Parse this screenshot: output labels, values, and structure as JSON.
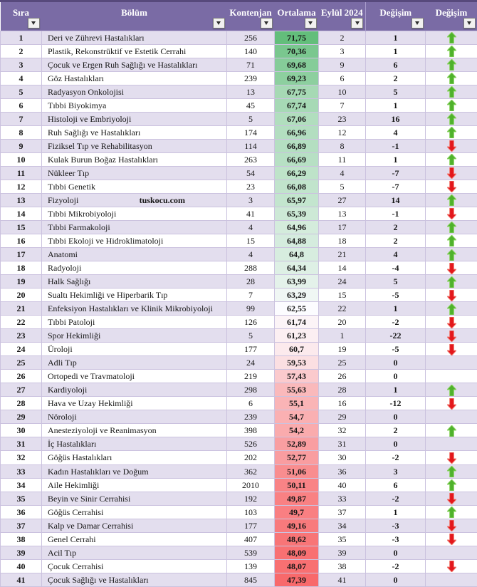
{
  "table": {
    "columns": [
      {
        "label": "Sıra"
      },
      {
        "label": "Bölüm"
      },
      {
        "label": "Kontenjan"
      },
      {
        "label": "Ortalama"
      },
      {
        "label": "Eylül 2024"
      },
      {
        "label": "Değişim"
      },
      {
        "label": "Değişim"
      }
    ],
    "watermark": "tuskocu.com",
    "rows": [
      {
        "sira": "1",
        "bolum": "Deri ve Zührevi Hastalıkları",
        "kontenjan": "256",
        "ortalama": "71,75",
        "eylul": "2",
        "degisim": "1",
        "arrow": "up"
      },
      {
        "sira": "2",
        "bolum": "Plastik, Rekonstrüktif ve Estetik Cerrahi",
        "kontenjan": "140",
        "ortalama": "70,36",
        "eylul": "3",
        "degisim": "1",
        "arrow": "up"
      },
      {
        "sira": "3",
        "bolum": "Çocuk ve Ergen Ruh Sağlığı ve Hastalıkları",
        "kontenjan": "71",
        "ortalama": "69,68",
        "eylul": "9",
        "degisim": "6",
        "arrow": "up"
      },
      {
        "sira": "4",
        "bolum": "Göz Hastalıkları",
        "kontenjan": "239",
        "ortalama": "69,23",
        "eylul": "6",
        "degisim": "2",
        "arrow": "up"
      },
      {
        "sira": "5",
        "bolum": "Radyasyon Onkolojisi",
        "kontenjan": "13",
        "ortalama": "67,75",
        "eylul": "10",
        "degisim": "5",
        "arrow": "up"
      },
      {
        "sira": "6",
        "bolum": "Tıbbi Biyokimya",
        "kontenjan": "45",
        "ortalama": "67,74",
        "eylul": "7",
        "degisim": "1",
        "arrow": "up"
      },
      {
        "sira": "7",
        "bolum": "Histoloji ve Embriyoloji",
        "kontenjan": "5",
        "ortalama": "67,06",
        "eylul": "23",
        "degisim": "16",
        "arrow": "up"
      },
      {
        "sira": "8",
        "bolum": "Ruh Sağlığı ve Hastalıkları",
        "kontenjan": "174",
        "ortalama": "66,96",
        "eylul": "12",
        "degisim": "4",
        "arrow": "up"
      },
      {
        "sira": "9",
        "bolum": "Fiziksel Tıp ve Rehabilitasyon",
        "kontenjan": "114",
        "ortalama": "66,89",
        "eylul": "8",
        "degisim": "-1",
        "arrow": "down"
      },
      {
        "sira": "10",
        "bolum": "Kulak Burun Boğaz Hastalıkları",
        "kontenjan": "263",
        "ortalama": "66,69",
        "eylul": "11",
        "degisim": "1",
        "arrow": "up"
      },
      {
        "sira": "11",
        "bolum": "Nükleer Tıp",
        "kontenjan": "54",
        "ortalama": "66,29",
        "eylul": "4",
        "degisim": "-7",
        "arrow": "down"
      },
      {
        "sira": "12",
        "bolum": "Tıbbi Genetik",
        "kontenjan": "23",
        "ortalama": "66,08",
        "eylul": "5",
        "degisim": "-7",
        "arrow": "down"
      },
      {
        "sira": "13",
        "bolum": "Fizyoloji",
        "kontenjan": "3",
        "ortalama": "65,97",
        "eylul": "27",
        "degisim": "14",
        "arrow": "up",
        "watermark": true
      },
      {
        "sira": "14",
        "bolum": "Tıbbi Mikrobiyoloji",
        "kontenjan": "41",
        "ortalama": "65,39",
        "eylul": "13",
        "degisim": "-1",
        "arrow": "down"
      },
      {
        "sira": "15",
        "bolum": "Tıbbi Farmakoloji",
        "kontenjan": "4",
        "ortalama": "64,96",
        "eylul": "17",
        "degisim": "2",
        "arrow": "up"
      },
      {
        "sira": "16",
        "bolum": "Tıbbi Ekoloji ve Hidroklimatoloji",
        "kontenjan": "15",
        "ortalama": "64,88",
        "eylul": "18",
        "degisim": "2",
        "arrow": "up"
      },
      {
        "sira": "17",
        "bolum": "Anatomi",
        "kontenjan": "4",
        "ortalama": "64,8",
        "eylul": "21",
        "degisim": "4",
        "arrow": "up"
      },
      {
        "sira": "18",
        "bolum": "Radyoloji",
        "kontenjan": "288",
        "ortalama": "64,34",
        "eylul": "14",
        "degisim": "-4",
        "arrow": "down"
      },
      {
        "sira": "19",
        "bolum": "Halk Sağlığı",
        "kontenjan": "28",
        "ortalama": "63,99",
        "eylul": "24",
        "degisim": "5",
        "arrow": "up"
      },
      {
        "sira": "20",
        "bolum": "Sualtı Hekimliği ve Hiperbarik Tıp",
        "kontenjan": "7",
        "ortalama": "63,29",
        "eylul": "15",
        "degisim": "-5",
        "arrow": "down"
      },
      {
        "sira": "21",
        "bolum": "Enfeksiyon Hastalıkları ve Klinik Mikrobiyoloji",
        "kontenjan": "99",
        "ortalama": "62,55",
        "eylul": "22",
        "degisim": "1",
        "arrow": "up"
      },
      {
        "sira": "22",
        "bolum": "Tıbbi Patoloji",
        "kontenjan": "126",
        "ortalama": "61,74",
        "eylul": "20",
        "degisim": "-2",
        "arrow": "down"
      },
      {
        "sira": "23",
        "bolum": "Spor Hekimliği",
        "kontenjan": "5",
        "ortalama": "61,23",
        "eylul": "1",
        "degisim": "-22",
        "arrow": "down"
      },
      {
        "sira": "24",
        "bolum": "Üroloji",
        "kontenjan": "177",
        "ortalama": "60,7",
        "eylul": "19",
        "degisim": "-5",
        "arrow": "down"
      },
      {
        "sira": "25",
        "bolum": "Adli Tıp",
        "kontenjan": "24",
        "ortalama": "59,53",
        "eylul": "25",
        "degisim": "0",
        "arrow": "none"
      },
      {
        "sira": "26",
        "bolum": "Ortopedi ve Travmatoloji",
        "kontenjan": "219",
        "ortalama": "57,43",
        "eylul": "26",
        "degisim": "0",
        "arrow": "none"
      },
      {
        "sira": "27",
        "bolum": "Kardiyoloji",
        "kontenjan": "298",
        "ortalama": "55,63",
        "eylul": "28",
        "degisim": "1",
        "arrow": "up"
      },
      {
        "sira": "28",
        "bolum": "Hava ve Uzay Hekimliği",
        "kontenjan": "6",
        "ortalama": "55,1",
        "eylul": "16",
        "degisim": "-12",
        "arrow": "down"
      },
      {
        "sira": "29",
        "bolum": "Nöroloji",
        "kontenjan": "239",
        "ortalama": "54,7",
        "eylul": "29",
        "degisim": "0",
        "arrow": "none"
      },
      {
        "sira": "30",
        "bolum": "Anesteziyoloji ve Reanimasyon",
        "kontenjan": "398",
        "ortalama": "54,2",
        "eylul": "32",
        "degisim": "2",
        "arrow": "up"
      },
      {
        "sira": "31",
        "bolum": "İç Hastalıkları",
        "kontenjan": "526",
        "ortalama": "52,89",
        "eylul": "31",
        "degisim": "0",
        "arrow": "none"
      },
      {
        "sira": "32",
        "bolum": "Göğüs Hastalıkları",
        "kontenjan": "202",
        "ortalama": "52,77",
        "eylul": "30",
        "degisim": "-2",
        "arrow": "down"
      },
      {
        "sira": "33",
        "bolum": "Kadın Hastalıkları ve Doğum",
        "kontenjan": "362",
        "ortalama": "51,06",
        "eylul": "36",
        "degisim": "3",
        "arrow": "up"
      },
      {
        "sira": "34",
        "bolum": "Aile Hekimliği",
        "kontenjan": "2010",
        "ortalama": "50,11",
        "eylul": "40",
        "degisim": "6",
        "arrow": "up"
      },
      {
        "sira": "35",
        "bolum": "Beyin ve Sinir Cerrahisi",
        "kontenjan": "192",
        "ortalama": "49,87",
        "eylul": "33",
        "degisim": "-2",
        "arrow": "down"
      },
      {
        "sira": "36",
        "bolum": "Göğüs Cerrahisi",
        "kontenjan": "103",
        "ortalama": "49,7",
        "eylul": "37",
        "degisim": "1",
        "arrow": "up"
      },
      {
        "sira": "37",
        "bolum": "Kalp ve Damar Cerrahisi",
        "kontenjan": "177",
        "ortalama": "49,16",
        "eylul": "34",
        "degisim": "-3",
        "arrow": "down"
      },
      {
        "sira": "38",
        "bolum": "Genel Cerrahi",
        "kontenjan": "407",
        "ortalama": "48,62",
        "eylul": "35",
        "degisim": "-3",
        "arrow": "down"
      },
      {
        "sira": "39",
        "bolum": "Acil Tıp",
        "kontenjan": "539",
        "ortalama": "48,09",
        "eylul": "39",
        "degisim": "0",
        "arrow": "none"
      },
      {
        "sira": "40",
        "bolum": "Çocuk Cerrahisi",
        "kontenjan": "139",
        "ortalama": "48,07",
        "eylul": "38",
        "degisim": "-2",
        "arrow": "down"
      },
      {
        "sira": "41",
        "bolum": "Çocuk Sağlığı ve Hastalıkları",
        "kontenjan": "845",
        "ortalama": "47,39",
        "eylul": "41",
        "degisim": "0",
        "arrow": "none"
      }
    ]
  },
  "colors": {
    "header_bg": "#7A6BA5",
    "band_row_bg": "#e3deee",
    "grid_line": "#cbc2df",
    "arrow_up_fill": "#4FB22C",
    "arrow_up_edge": "#8FD468",
    "arrow_down_fill": "#E3171C",
    "arrow_down_edge": "#F07B72"
  },
  "color_scale": {
    "min_value": 47.39,
    "mid_value": 62.55,
    "max_value": 71.75,
    "min_color": "#F8696B",
    "mid_color": "#FCFCFF",
    "max_color": "#63BE7B"
  }
}
